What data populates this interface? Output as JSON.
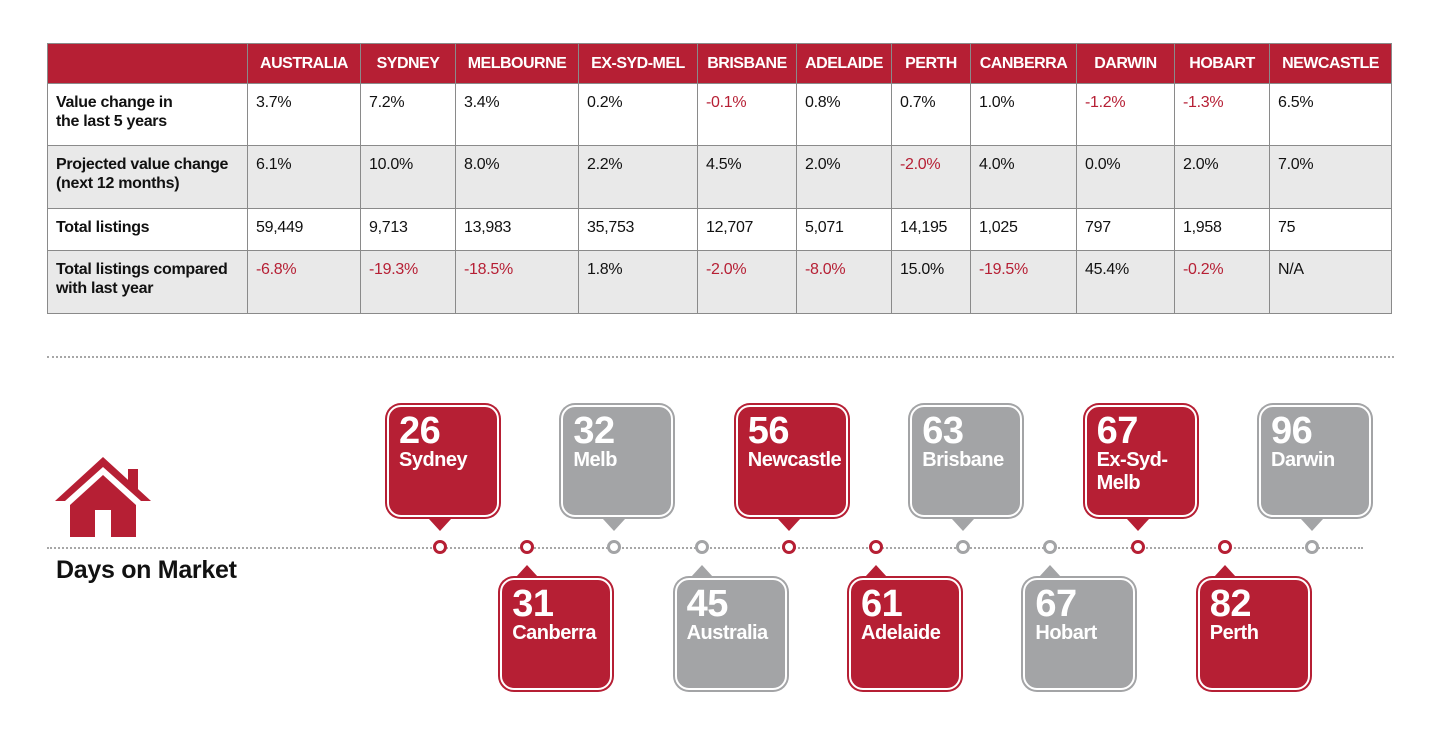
{
  "table": {
    "columns": [
      "",
      "AUSTRALIA",
      "SYDNEY",
      "MELBOURNE",
      "EX-SYD-MEL",
      "BRISBANE",
      "ADELAIDE",
      "PERTH",
      "CANBERRA",
      "DARWIN",
      "HOBART",
      "NEWCASTLE"
    ],
    "rows": [
      {
        "label_line1": "Value change in",
        "label_line2": "the last 5 years",
        "values": [
          "3.7%",
          "7.2%",
          "3.4%",
          "0.2%",
          "-0.1%",
          "0.8%",
          "0.7%",
          "1.0%",
          "-1.2%",
          "-1.3%",
          "6.5%"
        ]
      },
      {
        "label_line1": "Projected value change",
        "label_line2": "(next 12 months)",
        "values": [
          "6.1%",
          "10.0%",
          "8.0%",
          "2.2%",
          "4.5%",
          "2.0%",
          "-2.0%",
          "4.0%",
          "0.0%",
          "2.0%",
          "7.0%"
        ]
      },
      {
        "label_line1": "Total listings",
        "label_line2": "",
        "values": [
          "59,449",
          "9,713",
          "13,983",
          "35,753",
          "12,707",
          "5,071",
          "14,195",
          "1,025",
          "797",
          "1,958",
          "75"
        ]
      },
      {
        "label_line1": "Total listings compared",
        "label_line2": "with last year",
        "values": [
          "-6.8%",
          "-19.3%",
          "-18.5%",
          "1.8%",
          "-2.0%",
          "-8.0%",
          "15.0%",
          "-19.5%",
          "45.4%",
          "-0.2%",
          "N/A"
        ]
      }
    ]
  },
  "days_on_market": {
    "title": "Days on Market",
    "items": [
      {
        "days": "26",
        "city_line1": "Sydney",
        "city_line2": "",
        "color": "red"
      },
      {
        "days": "31",
        "city_line1": "Canberra",
        "city_line2": "",
        "color": "red"
      },
      {
        "days": "32",
        "city_line1": "Melb",
        "city_line2": "",
        "color": "grey"
      },
      {
        "days": "45",
        "city_line1": "Australia",
        "city_line2": "",
        "color": "grey"
      },
      {
        "days": "56",
        "city_line1": "Newcastle",
        "city_line2": "",
        "color": "red"
      },
      {
        "days": "61",
        "city_line1": "Adelaide",
        "city_line2": "",
        "color": "red"
      },
      {
        "days": "63",
        "city_line1": "Brisbane",
        "city_line2": "",
        "color": "grey"
      },
      {
        "days": "67",
        "city_line1": "Hobart",
        "city_line2": "",
        "color": "grey"
      },
      {
        "days": "67",
        "city_line1": "Ex-Syd-",
        "city_line2": "Melb",
        "color": "red"
      },
      {
        "days": "82",
        "city_line1": "Perth",
        "city_line2": "",
        "color": "red"
      },
      {
        "days": "96",
        "city_line1": "Darwin",
        "city_line2": "",
        "color": "grey"
      }
    ]
  },
  "colors": {
    "red": "#b61f34",
    "grey": "#a3a4a6",
    "row_shade": "#e9e9e9",
    "dots": "#a7a7a7"
  },
  "icons": {
    "house": "house-icon",
    "timeline_marker": "circle-marker-icon"
  }
}
